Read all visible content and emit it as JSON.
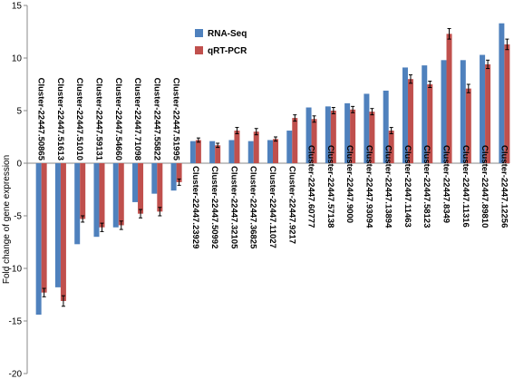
{
  "chart_data": {
    "type": "bar",
    "ylabel": "Fold change of gene expression",
    "ylim": [
      -20,
      15
    ],
    "yticks": [
      -20,
      -15,
      -10,
      -5,
      0,
      5,
      10,
      15
    ],
    "categories": [
      "Cluster-22447.50865",
      "Cluster-22447.51613",
      "Cluster-22447.51010",
      "Cluster-22447.59131",
      "Cluster-22447.54660",
      "Cluster-22447.71098",
      "Cluster-22447.55822",
      "Cluster-22447.51995",
      "Cluster-22447.23929",
      "Cluster-22447.50992",
      "Cluster-22447.32105",
      "Cluster-22447.36825",
      "Cluster-22447.11027",
      "Cluster-22447.9217",
      "Cluster-22447.60777",
      "Cluster-22447.57138",
      "Cluster-22447.9000",
      "Cluster-22447.93094",
      "Cluster-22447.13894",
      "Cluster-22447.11463",
      "Cluster-22447.58123",
      "Cluster-22447.8349",
      "Cluster-22447.11316",
      "Cluster-22447.89810",
      "Cluster-22447.12256"
    ],
    "series": [
      {
        "name": "RNA-Seq",
        "color": "#4f81bd",
        "values": [
          -14.4,
          -11.8,
          -7.7,
          -7.0,
          -6.1,
          -3.7,
          -2.9,
          -2.6,
          2.1,
          2.1,
          2.2,
          2.1,
          2.2,
          3.1,
          5.3,
          5.4,
          5.7,
          6.6,
          6.9,
          9.1,
          9.3,
          9.8,
          9.8,
          10.3,
          13.3
        ],
        "errors": [
          0,
          0,
          0,
          0,
          0,
          0,
          0,
          0,
          0,
          0,
          0,
          0,
          0,
          0,
          0,
          0,
          0,
          0,
          0,
          0,
          0,
          0,
          0,
          0,
          0
        ]
      },
      {
        "name": "qRT-PCR",
        "color": "#c0504d",
        "values": [
          -12.3,
          -13.1,
          -5.3,
          -6.1,
          -5.9,
          -4.8,
          -4.6,
          -1.8,
          2.2,
          1.7,
          3.1,
          3.0,
          2.3,
          4.3,
          4.2,
          5.0,
          5.1,
          4.9,
          3.1,
          8.0,
          7.5,
          12.3,
          7.1,
          9.4,
          11.3
        ],
        "errors": [
          0.4,
          0.5,
          0.3,
          0.4,
          0.4,
          0.4,
          0.4,
          0.3,
          0.2,
          0.2,
          0.3,
          0.3,
          0.2,
          0.3,
          0.3,
          0.3,
          0.3,
          0.3,
          0.3,
          0.4,
          0.3,
          0.5,
          0.4,
          0.4,
          0.5
        ]
      }
    ],
    "legend_position": "top-left",
    "grid": false
  }
}
